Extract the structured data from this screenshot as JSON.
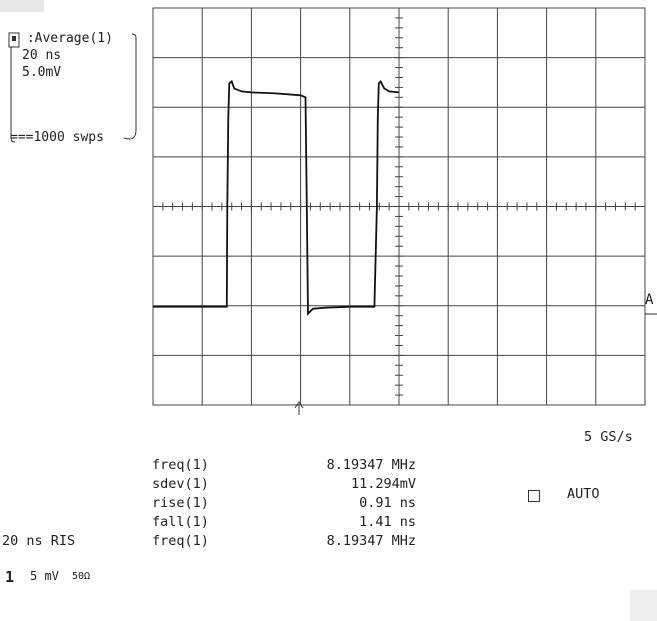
{
  "trace_box": {
    "header": " :Average(1)",
    "timebase": "20 ns",
    "volts": "5.0mV",
    "sweeps": "===1000 swps"
  },
  "sample_rate": "5 GS/s",
  "trigger_marker": "A",
  "auto_label": "AUTO",
  "measurements": [
    {
      "label": "freq(1)",
      "value": "8.19347 MHz"
    },
    {
      "label": "sdev(1)",
      "value": "11.294mV"
    },
    {
      "label": "rise(1)",
      "value": "0.91 ns"
    },
    {
      "label": "fall(1)",
      "value": "1.41 ns"
    },
    {
      "label": "freq(1)",
      "value": "8.19347 MHz"
    }
  ],
  "acq_mode": "20 ns RIS",
  "channel": {
    "number": "1",
    "volts": "5 mV",
    "coupling": "50Ω"
  },
  "colors": {
    "grid": "#444444",
    "trace": "#111111",
    "bg": "#ffffff"
  },
  "chart_data": {
    "type": "line",
    "title": "",
    "xlabel": "",
    "ylabel": "",
    "x_units": "ns",
    "y_units": "mV",
    "xlim": [
      0,
      200
    ],
    "ylim": [
      -20,
      20
    ],
    "grid": "10x8 divisions",
    "series": [
      {
        "x": [
          0,
          30,
          30.2,
          30.6,
          31.0,
          32,
          33,
          36,
          40,
          50,
          60,
          62,
          62.5,
          63,
          65,
          70,
          80,
          90,
          91,
          91.4,
          91.8,
          92.5,
          94,
          96,
          100
        ],
        "y": [
          -10.1,
          -10.1,
          0,
          9.0,
          12.4,
          12.6,
          11.9,
          11.6,
          11.5,
          11.4,
          11.2,
          11.0,
          0,
          -10.8,
          -10.3,
          -10.2,
          -10.1,
          -10.1,
          0,
          9.0,
          12.4,
          12.6,
          11.9,
          11.6,
          11.5
        ]
      }
    ]
  }
}
